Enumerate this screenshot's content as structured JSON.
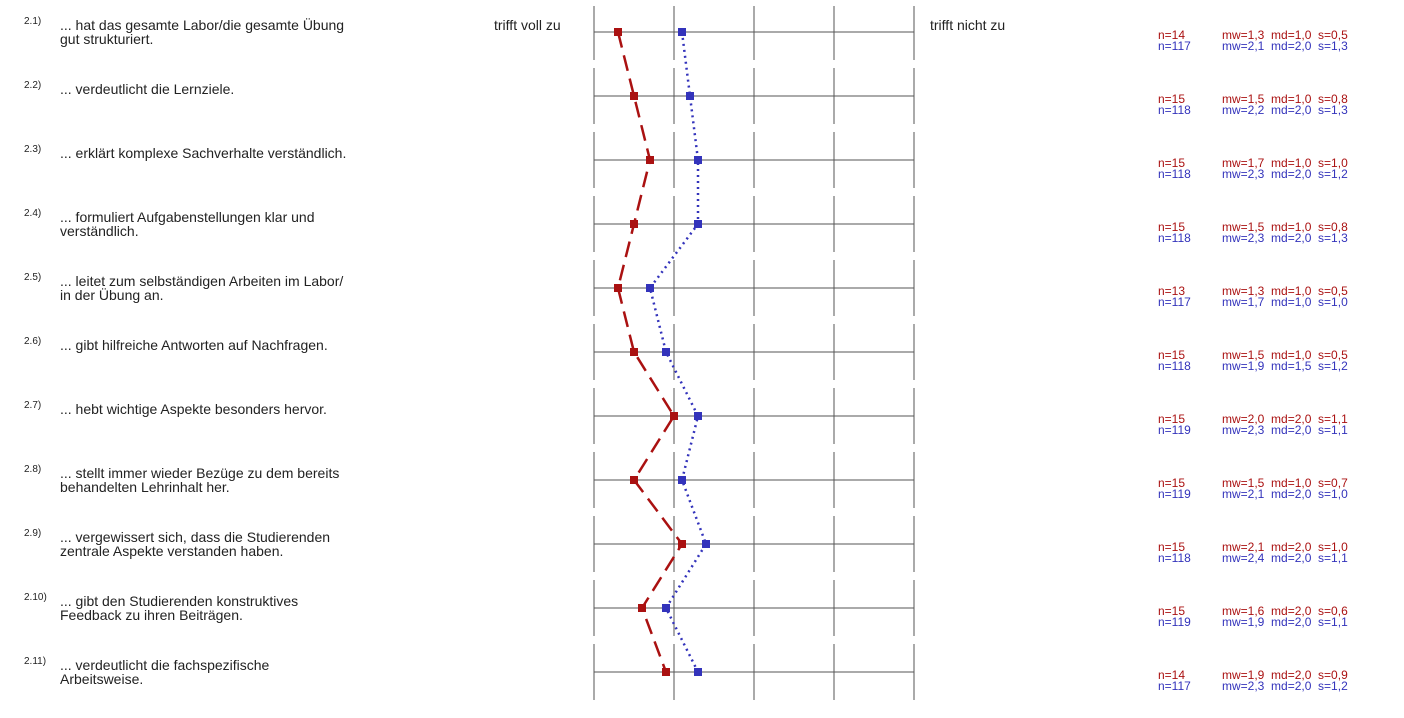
{
  "scale": {
    "left_label": "trifft voll zu",
    "right_label": "trifft nicht zu"
  },
  "colors": {
    "series1": "#aa1111",
    "series2": "#3333bb",
    "grid": "#555555"
  },
  "chart_data": {
    "type": "line",
    "categories": [
      "2.1)",
      "2.2)",
      "2.3)",
      "2.4)",
      "2.5)",
      "2.6)",
      "2.7)",
      "2.8)",
      "2.9)",
      "2.10)",
      "2.11)"
    ],
    "xlim": [
      1,
      5
    ],
    "series": [
      {
        "values": [
          1.3,
          1.5,
          1.7,
          1.5,
          1.3,
          1.5,
          2.0,
          1.5,
          2.1,
          1.6,
          1.9
        ],
        "color": "#aa1111",
        "style": "dashed"
      },
      {
        "values": [
          2.1,
          2.2,
          2.3,
          2.3,
          1.7,
          1.9,
          2.3,
          2.1,
          2.4,
          1.9,
          2.3
        ],
        "color": "#3333bb",
        "style": "dotted"
      }
    ]
  },
  "items": [
    {
      "num": "2.1)",
      "text": "... hat das gesamte Labor/die gesamte Übung\ngut strukturiert.",
      "s1": {
        "n": "n=14",
        "stats": "mw=1,3  md=1,0  s=0,5"
      },
      "s2": {
        "n": "n=117",
        "stats": "mw=2,1  md=2,0  s=1,3"
      }
    },
    {
      "num": "2.2)",
      "text": "... verdeutlicht die Lernziele.",
      "s1": {
        "n": "n=15",
        "stats": "mw=1,5  md=1,0  s=0,8"
      },
      "s2": {
        "n": "n=118",
        "stats": "mw=2,2  md=2,0  s=1,3"
      }
    },
    {
      "num": "2.3)",
      "text": "... erklärt komplexe Sachverhalte verständlich.",
      "s1": {
        "n": "n=15",
        "stats": "mw=1,7  md=1,0  s=1,0"
      },
      "s2": {
        "n": "n=118",
        "stats": "mw=2,3  md=2,0  s=1,2"
      }
    },
    {
      "num": "2.4)",
      "text": "... formuliert Aufgabenstellungen klar und\nverständlich.",
      "s1": {
        "n": "n=15",
        "stats": "mw=1,5  md=1,0  s=0,8"
      },
      "s2": {
        "n": "n=118",
        "stats": "mw=2,3  md=2,0  s=1,3"
      }
    },
    {
      "num": "2.5)",
      "text": "... leitet zum selbständigen Arbeiten im Labor/\nin der Übung an.",
      "s1": {
        "n": "n=13",
        "stats": "mw=1,3  md=1,0  s=0,5"
      },
      "s2": {
        "n": "n=117",
        "stats": "mw=1,7  md=1,0  s=1,0"
      }
    },
    {
      "num": "2.6)",
      "text": "... gibt hilfreiche Antworten auf Nachfragen.",
      "s1": {
        "n": "n=15",
        "stats": "mw=1,5  md=1,0  s=0,5"
      },
      "s2": {
        "n": "n=118",
        "stats": "mw=1,9  md=1,5  s=1,2"
      }
    },
    {
      "num": "2.7)",
      "text": "... hebt wichtige Aspekte besonders hervor.",
      "s1": {
        "n": "n=15",
        "stats": "mw=2,0  md=2,0  s=1,1"
      },
      "s2": {
        "n": "n=119",
        "stats": "mw=2,3  md=2,0  s=1,1"
      }
    },
    {
      "num": "2.8)",
      "text": "... stellt immer wieder Bezüge zu dem bereits\nbehandelten Lehrinhalt her.",
      "s1": {
        "n": "n=15",
        "stats": "mw=1,5  md=1,0  s=0,7"
      },
      "s2": {
        "n": "n=119",
        "stats": "mw=2,1  md=2,0  s=1,0"
      }
    },
    {
      "num": "2.9)",
      "text": "... vergewissert sich, dass die Studierenden\nzentrale Aspekte verstanden haben.",
      "s1": {
        "n": "n=15",
        "stats": "mw=2,1  md=2,0  s=1,0"
      },
      "s2": {
        "n": "n=118",
        "stats": "mw=2,4  md=2,0  s=1,1"
      }
    },
    {
      "num": "2.10)",
      "text": "... gibt den Studierenden konstruktives\nFeedback zu ihren Beiträgen.",
      "s1": {
        "n": "n=15",
        "stats": "mw=1,6  md=2,0  s=0,6"
      },
      "s2": {
        "n": "n=119",
        "stats": "mw=1,9  md=2,0  s=1,1"
      }
    },
    {
      "num": "2.11)",
      "text": "... verdeutlicht die fachspezifische\nArbeitsweise.",
      "s1": {
        "n": "n=14",
        "stats": "mw=1,9  md=2,0  s=0,9"
      },
      "s2": {
        "n": "n=117",
        "stats": "mw=2,3  md=2,0  s=1,2"
      }
    }
  ]
}
